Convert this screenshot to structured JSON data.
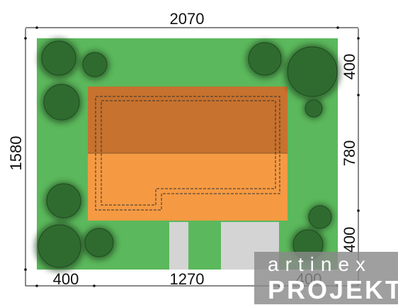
{
  "dimensions": {
    "top_width": "2070",
    "left_height": "1580",
    "right_segments": [
      "400",
      "780",
      "400"
    ],
    "bottom_segments": [
      "400",
      "1270",
      "400"
    ]
  },
  "watermark": {
    "line1": "artinex",
    "line2": "PROJEKT"
  },
  "colors": {
    "lot": "#5cb85c",
    "roof_dark": "#c7722e",
    "roof_light": "#f59a43",
    "tree": "#2f6b2f",
    "paving": "#d4d4d4",
    "watermark_bg": "#8a8a8a"
  }
}
